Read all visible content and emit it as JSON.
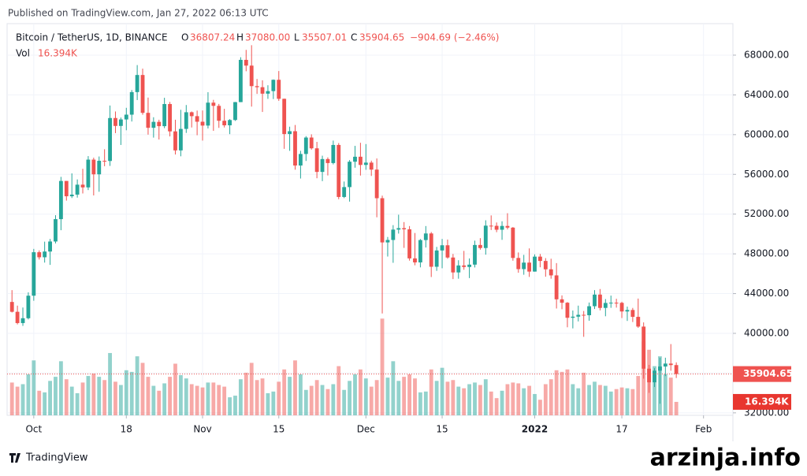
{
  "header": {
    "published": "Published on TradingView.com, Jan 27, 2022 06:13 UTC",
    "brand": "TradingView",
    "watermark": "arzinja.info"
  },
  "chart_data": {
    "type": "candlestick",
    "legend": {
      "symbol": "Bitcoin / TetherUS, 1D, BINANCE",
      "o": "O",
      "open": "36807.24",
      "h": "H",
      "high": "37080.00",
      "l": "L",
      "low": "35507.01",
      "c": "C",
      "close": "35904.65",
      "change": "−904.69 (−2.46%)",
      "vol": "Vol",
      "volume": "16.394K"
    },
    "up_color": "#26a69a",
    "down_color": "#ef5350",
    "x": [
      0,
      1,
      2,
      3,
      4,
      5,
      6,
      7,
      8,
      9,
      10,
      11,
      12,
      13,
      14,
      15,
      16,
      17,
      18,
      19,
      20,
      21,
      22,
      23,
      24,
      25,
      26,
      27,
      28,
      29,
      30,
      31,
      32,
      33,
      34,
      35,
      36,
      37,
      38,
      39,
      40,
      41,
      42,
      43,
      44,
      45,
      46,
      47,
      48,
      49,
      50,
      51,
      52,
      53,
      54,
      55,
      56,
      57,
      58,
      59,
      60,
      61,
      62,
      63,
      64,
      65,
      66,
      67,
      68,
      69,
      70,
      71,
      72,
      73,
      74,
      75,
      76,
      77,
      78,
      79,
      80,
      81,
      82,
      83,
      84,
      85,
      86,
      87,
      88,
      89,
      90,
      91,
      92,
      93,
      94,
      95,
      96,
      97,
      98,
      99,
      100,
      101,
      102,
      103,
      104,
      105,
      106,
      107,
      108,
      109,
      110,
      111,
      112,
      113,
      114,
      115,
      116,
      117,
      118,
      119,
      120,
      121,
      122
    ],
    "open": [
      43160,
      42170,
      41034,
      41522,
      43790,
      48165,
      47657,
      48233,
      49245,
      51493,
      55339,
      53797,
      53963,
      54963,
      54690,
      57485,
      56005,
      57367,
      57347,
      61672,
      60875,
      61528,
      62010,
      64280,
      66002,
      62193,
      60688,
      61286,
      60852,
      63078,
      60328,
      58413,
      60575,
      62253,
      61859,
      61299,
      60911,
      63219,
      62896,
      61395,
      60937,
      61470,
      63273,
      67525,
      66947,
      64882,
      64774,
      64122,
      64380,
      65519,
      63606,
      60058,
      60344,
      56891,
      58052,
      59707,
      58622,
      56247,
      57541,
      57138,
      58960,
      53726,
      54721,
      57274,
      57776,
      56950,
      57184,
      56480,
      53601,
      49152,
      49397,
      50441,
      50588,
      50471,
      47545,
      47140,
      49389,
      50053,
      46702,
      48343,
      48864,
      47632,
      46131,
      46834,
      46681,
      46915,
      48896,
      48588,
      50838,
      50821,
      50429,
      50809,
      50640,
      47588,
      46464,
      47120,
      46216,
      47722,
      47286,
      46446,
      45833,
      43425,
      43082,
      41566,
      41679,
      41864,
      41822,
      42729,
      43902,
      42560,
      43059,
      43084,
      43071,
      42201,
      42352,
      41660,
      40680,
      36445,
      35071,
      36244,
      36660,
      36958,
      36807.24
    ],
    "high": [
      44350,
      42790,
      42600,
      44130,
      48500,
      48350,
      49230,
      49500,
      51890,
      55750,
      55340,
      56100,
      55490,
      56560,
      57840,
      57680,
      57800,
      58530,
      62930,
      62330,
      61720,
      62700,
      64490,
      67000,
      66640,
      63730,
      61750,
      61500,
      63710,
      63290,
      61500,
      62500,
      62980,
      62330,
      62420,
      62430,
      64270,
      63500,
      63090,
      62600,
      61560,
      63290,
      67790,
      68530,
      69000,
      65600,
      65470,
      64970,
      65550,
      66400,
      63620,
      60800,
      60970,
      58370,
      59850,
      60030,
      59270,
      57880,
      57710,
      59400,
      59150,
      55280,
      57440,
      58870,
      59180,
      59050,
      57380,
      57600,
      53860,
      49700,
      50890,
      51940,
      51200,
      50800,
      50100,
      49490,
      50800,
      50200,
      48700,
      49500,
      49440,
      47990,
      47360,
      48300,
      47540,
      49330,
      49580,
      51380,
      51870,
      51160,
      51280,
      52090,
      50700,
      48140,
      47900,
      48550,
      47950,
      47990,
      47570,
      47510,
      47070,
      43820,
      43150,
      42300,
      42790,
      42250,
      43100,
      44350,
      44460,
      43450,
      43800,
      43480,
      43180,
      42690,
      42560,
      43500,
      41100,
      36830,
      36500,
      37550,
      37550,
      38920,
      37080
    ],
    "low": [
      42100,
      40900,
      40750,
      41400,
      43280,
      47430,
      47120,
      46890,
      49050,
      50380,
      53360,
      53620,
      53660,
      54080,
      54420,
      53880,
      54250,
      56820,
      56850,
      60150,
      58960,
      60440,
      61320,
      63480,
      62000,
      60000,
      59700,
      59510,
      60650,
      59820,
      58000,
      57820,
      60170,
      60720,
      59940,
      59400,
      60620,
      60380,
      60680,
      60720,
      60050,
      61380,
      63270,
      66380,
      62820,
      64100,
      62280,
      63600,
      63580,
      63400,
      58570,
      58370,
      56470,
      55580,
      57350,
      58490,
      55610,
      55320,
      55890,
      57000,
      53500,
      53610,
      53260,
      56670,
      55880,
      56460,
      55840,
      51680,
      42000,
      47730,
      47100,
      50040,
      48600,
      47320,
      46850,
      46640,
      48640,
      45670,
      46290,
      46550,
      47510,
      45460,
      45500,
      46400,
      45560,
      46630,
      48420,
      47920,
      50400,
      50180,
      49410,
      50460,
      47310,
      46100,
      45900,
      45680,
      46210,
      46650,
      45700,
      45500,
      42500,
      42430,
      40610,
      40500,
      41200,
      39650,
      41270,
      42450,
      42310,
      41720,
      42570,
      42590,
      41540,
      41250,
      41140,
      40550,
      35440,
      34010,
      34600,
      32917,
      35700,
      36240,
      35507.01
    ],
    "close": [
      42170,
      41034,
      41522,
      43790,
      48165,
      47657,
      48233,
      49245,
      51493,
      55339,
      53797,
      53963,
      54963,
      54690,
      57485,
      56005,
      57367,
      57347,
      61672,
      60875,
      61528,
      62010,
      64280,
      66002,
      62193,
      60688,
      61286,
      60852,
      63078,
      60328,
      58413,
      60575,
      62253,
      61859,
      61299,
      60911,
      63219,
      62896,
      61395,
      60937,
      61470,
      63273,
      67525,
      66947,
      64882,
      64774,
      64122,
      64380,
      65519,
      63606,
      60058,
      60344,
      56891,
      58052,
      59707,
      58622,
      56247,
      57541,
      57138,
      58960,
      53726,
      54721,
      57274,
      57776,
      56950,
      57184,
      56480,
      53601,
      49152,
      49397,
      50441,
      50588,
      50471,
      47545,
      47140,
      49389,
      50053,
      46702,
      48343,
      48864,
      47632,
      46131,
      46834,
      46681,
      46915,
      48896,
      48588,
      50838,
      50821,
      50429,
      50809,
      50640,
      47588,
      46464,
      47120,
      46216,
      47722,
      47286,
      46446,
      45833,
      43425,
      43082,
      41566,
      41679,
      41864,
      41822,
      42729,
      43902,
      42560,
      43059,
      43084,
      43071,
      42201,
      42352,
      41660,
      40680,
      36445,
      35071,
      36244,
      36660,
      36958,
      36807.24,
      35904.65
    ],
    "volume": [
      40,
      35,
      38,
      50,
      67,
      30,
      28,
      42,
      47,
      66,
      44,
      35,
      27,
      40,
      48,
      51,
      47,
      43,
      76,
      41,
      37,
      55,
      53,
      72,
      64,
      47,
      36,
      30,
      39,
      47,
      63,
      49,
      45,
      38,
      36,
      34,
      40,
      40,
      37,
      35,
      22,
      24,
      44,
      52,
      64,
      43,
      45,
      27,
      29,
      41,
      56,
      47,
      67,
      50,
      31,
      36,
      43,
      37,
      32,
      38,
      60,
      31,
      42,
      50,
      56,
      45,
      35,
      43,
      118,
      46,
      66,
      42,
      47,
      50,
      45,
      28,
      29,
      56,
      42,
      58,
      41,
      43,
      35,
      33,
      38,
      40,
      37,
      44,
      29,
      21,
      30,
      38,
      40,
      39,
      33,
      36,
      26,
      19,
      38,
      44,
      55,
      53,
      56,
      38,
      33,
      52,
      37,
      41,
      37,
      36,
      29,
      32,
      34,
      33,
      32,
      48,
      90,
      80,
      60,
      72,
      50,
      46,
      16.394
    ],
    "xlim": [
      -2.2,
      132.4
    ],
    "ylim": [
      31750,
      71170
    ],
    "xticks": [
      {
        "value": 4,
        "label": "Oct"
      },
      {
        "value": 21,
        "label": "18"
      },
      {
        "value": 35,
        "label": "Nov"
      },
      {
        "value": 49,
        "label": "15"
      },
      {
        "value": 65,
        "label": "Dec"
      },
      {
        "value": 79,
        "label": "15"
      },
      {
        "value": 96,
        "label": "2022"
      },
      {
        "value": 112,
        "label": "17"
      },
      {
        "value": 127,
        "label": "Feb"
      }
    ],
    "yticks": [
      {
        "value": 32000,
        "label": "32000.00"
      },
      {
        "value": 36000,
        "label": "36000.00"
      },
      {
        "value": 40000,
        "label": "40000.00"
      },
      {
        "value": 44000,
        "label": "44000.00"
      },
      {
        "value": 48000,
        "label": "48000.00"
      },
      {
        "value": 52000,
        "label": "52000.00"
      },
      {
        "value": 56000,
        "label": "56000.00"
      },
      {
        "value": 60000,
        "label": "60000.00"
      },
      {
        "value": 64000,
        "label": "64000.00"
      },
      {
        "value": 68000,
        "label": "68000.00"
      }
    ],
    "grid": true
  }
}
